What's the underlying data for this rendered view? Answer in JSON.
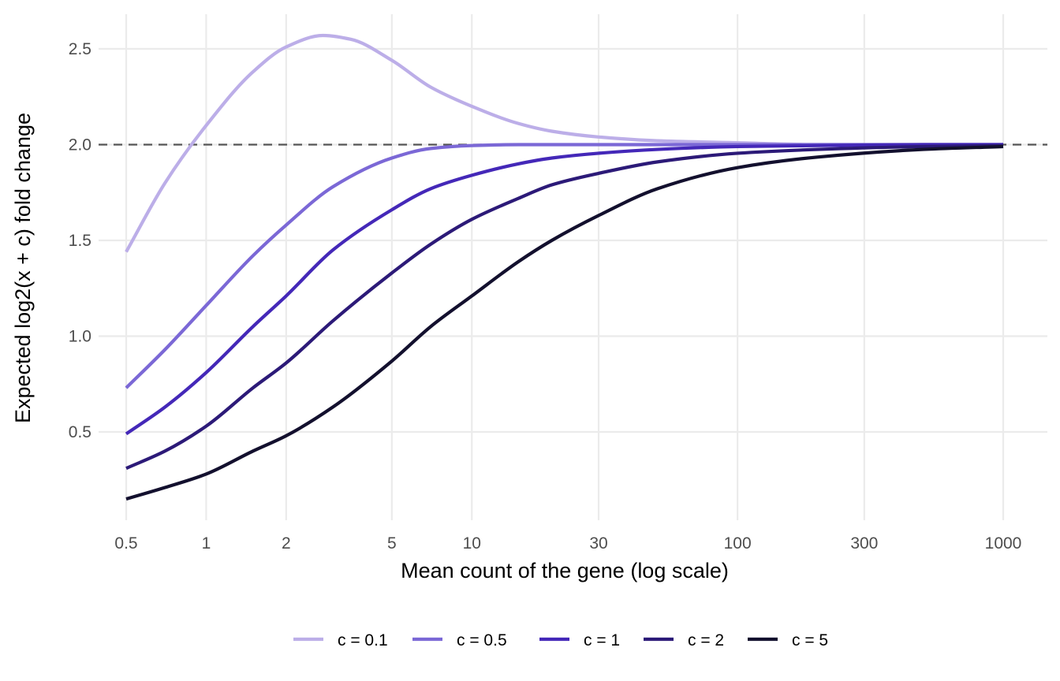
{
  "chart_data": {
    "type": "line",
    "title": "",
    "xlabel": "Mean count of the gene (log scale)",
    "ylabel": "Expected log2(x + c) fold change",
    "x_scale": "log",
    "xlim": [
      0.42,
      1300
    ],
    "ylim": [
      0.05,
      2.68
    ],
    "x_ticks": [
      0.5,
      1,
      2,
      5,
      10,
      30,
      100,
      300,
      1000
    ],
    "x_tick_labels": [
      "0.5",
      "1",
      "2",
      "5",
      "10",
      "30",
      "100",
      "300",
      "1000"
    ],
    "y_ticks": [
      0.5,
      1.0,
      1.5,
      2.0,
      2.5
    ],
    "y_tick_labels": [
      "0.5",
      "1.0",
      "1.5",
      "2.0",
      "2.5"
    ],
    "grid": true,
    "legend_position": "bottom",
    "reference_line": {
      "y": 2.0,
      "style": "dashed",
      "color": "#555555"
    },
    "series": [
      {
        "name": "c = 0.1",
        "color": "#bcaee8",
        "x": [
          0.5,
          0.7,
          1,
          1.5,
          2,
          2.75,
          3.5,
          5,
          7,
          10,
          15,
          20,
          30,
          50,
          100,
          200,
          500,
          1000
        ],
        "y": [
          1.44,
          1.8,
          2.1,
          2.38,
          2.51,
          2.57,
          2.55,
          2.44,
          2.3,
          2.2,
          2.11,
          2.07,
          2.04,
          2.02,
          2.01,
          2.0,
          2.0,
          2.0
        ]
      },
      {
        "name": "c = 0.5",
        "color": "#7b68d6",
        "x": [
          0.5,
          0.7,
          1,
          1.5,
          2,
          3,
          5,
          7,
          10,
          15,
          20,
          30,
          50,
          100,
          200,
          500,
          1000
        ],
        "y": [
          0.73,
          0.93,
          1.16,
          1.42,
          1.58,
          1.78,
          1.93,
          1.98,
          1.995,
          2.0,
          2.0,
          2.0,
          2.0,
          2.0,
          2.0,
          2.0,
          2.0
        ]
      },
      {
        "name": "c = 1",
        "color": "#4428b8",
        "x": [
          0.5,
          0.7,
          1,
          1.5,
          2,
          3,
          5,
          7,
          10,
          15,
          20,
          30,
          50,
          100,
          200,
          500,
          1000
        ],
        "y": [
          0.49,
          0.63,
          0.81,
          1.05,
          1.21,
          1.45,
          1.66,
          1.77,
          1.84,
          1.9,
          1.93,
          1.955,
          1.975,
          1.99,
          1.995,
          2.0,
          2.0
        ]
      },
      {
        "name": "c = 2",
        "color": "#2c1a78",
        "x": [
          0.5,
          0.7,
          1,
          1.5,
          2,
          3,
          5,
          7,
          10,
          15,
          20,
          30,
          50,
          100,
          200,
          500,
          1000
        ],
        "y": [
          0.31,
          0.4,
          0.53,
          0.73,
          0.86,
          1.08,
          1.33,
          1.48,
          1.61,
          1.72,
          1.79,
          1.85,
          1.91,
          1.955,
          1.975,
          1.99,
          1.995
        ]
      },
      {
        "name": "c = 5",
        "color": "#13102e",
        "x": [
          0.5,
          0.7,
          1,
          1.5,
          2,
          3,
          5,
          7,
          10,
          15,
          20,
          30,
          50,
          100,
          200,
          500,
          1000
        ],
        "y": [
          0.15,
          0.21,
          0.28,
          0.4,
          0.48,
          0.63,
          0.87,
          1.05,
          1.21,
          1.39,
          1.5,
          1.63,
          1.77,
          1.88,
          1.935,
          1.975,
          1.99
        ]
      }
    ]
  }
}
